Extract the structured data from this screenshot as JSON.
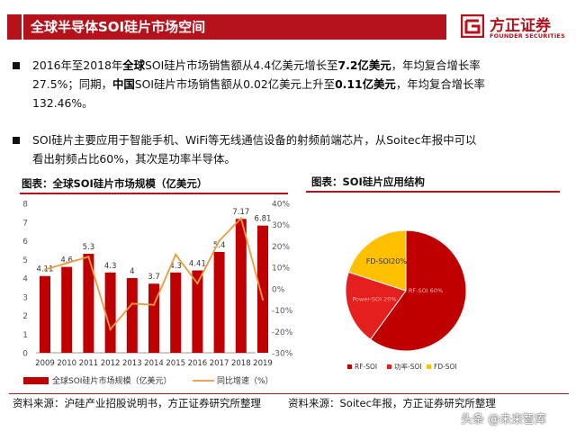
{
  "header": {
    "title": "全球半导体SOI硅片市场空间",
    "logo_name": "方正证券",
    "logo_en": "FOUNDER SECURITIES"
  },
  "bullets": [
    {
      "line1": [
        "2016年至2018年",
        "全球",
        "SOI硅片市场销售额从4.4亿美元增长至",
        "7.2亿美元",
        "，年均复合增长率"
      ],
      "line2": [
        "27.5%；同期，",
        "中国",
        "SOI硅片市场销售额从0.02亿美元上升至",
        "0.11亿美元",
        "，年均复合增长率"
      ],
      "line3": "132.46%。"
    },
    {
      "line1": "SOI硅片主要应用于智能手机、WiFi等无线通信设备的射频前端芯片，从Soitec年报中可以",
      "line2": "看出射频占比60%，其次是功率半导体。"
    }
  ],
  "left_panel": {
    "title": "图表：全球SOI硅片市场规模（亿美元）",
    "source": "资料来源：沪硅产业招股说明书，方正证券研究所整理"
  },
  "right_panel": {
    "title": "图表：SOI硅片应用结构",
    "source": "资料来源：Soitec年报，方正证券研究所整理"
  },
  "watermark": "头条 @未来智库",
  "chart_data": [
    {
      "type": "bar",
      "title": "图表：全球SOI硅片市场规模（亿美元）",
      "categories": [
        "2009",
        "2010",
        "2011",
        "2012",
        "2013",
        "2014",
        "2015",
        "2016",
        "2017",
        "2018",
        "2019"
      ],
      "series": [
        {
          "name": "全球SOI硅片市场规模（亿美元）",
          "type": "bar",
          "color": "#c00000",
          "values": [
            4.11,
            4.6,
            5.3,
            4.3,
            4.0,
            3.7,
            4.3,
            4.41,
            5.4,
            7.17,
            6.81
          ],
          "labels": [
            "4.11",
            "4.6",
            "5.3",
            "4.3",
            "4",
            "3.7",
            "4.3",
            "4.41",
            "5.4",
            "7.17",
            "6.81"
          ]
        },
        {
          "name": "同比增速（%）",
          "type": "line",
          "axis": "right",
          "color": "#ed9a3c",
          "values": [
            9,
            12,
            15,
            -19,
            -7,
            -7.5,
            16,
            2.5,
            22.5,
            33,
            -5
          ]
        }
      ],
      "ylim": [
        0,
        8
      ],
      "yticks": [
        "0",
        "1",
        "2",
        "3",
        "4",
        "5",
        "6",
        "7",
        "8"
      ],
      "y2lim": [
        -30,
        40
      ],
      "y2ticks": [
        "-30%",
        "-20%",
        "-10%",
        "0%",
        "10%",
        "20%",
        "30%",
        "40%"
      ],
      "legend": "bottom",
      "legend_labels": [
        "全球SOI硅片市场规模（亿美元）",
        "同比增速（%）"
      ]
    },
    {
      "type": "pie",
      "title": "图表：SOI硅片应用结构",
      "slices": [
        {
          "name": "RF-SOI",
          "value": 60,
          "label": "RF-SOI 60%",
          "color": "#c00000"
        },
        {
          "name": "功率-SOI",
          "value": 20,
          "label": "Power-SOI 20%",
          "color": "#e51e1e"
        },
        {
          "name": "FD-SOI",
          "value": 20,
          "label": "FD-SOI20%",
          "color": "#ffc000"
        }
      ],
      "legend": "bottom"
    }
  ]
}
